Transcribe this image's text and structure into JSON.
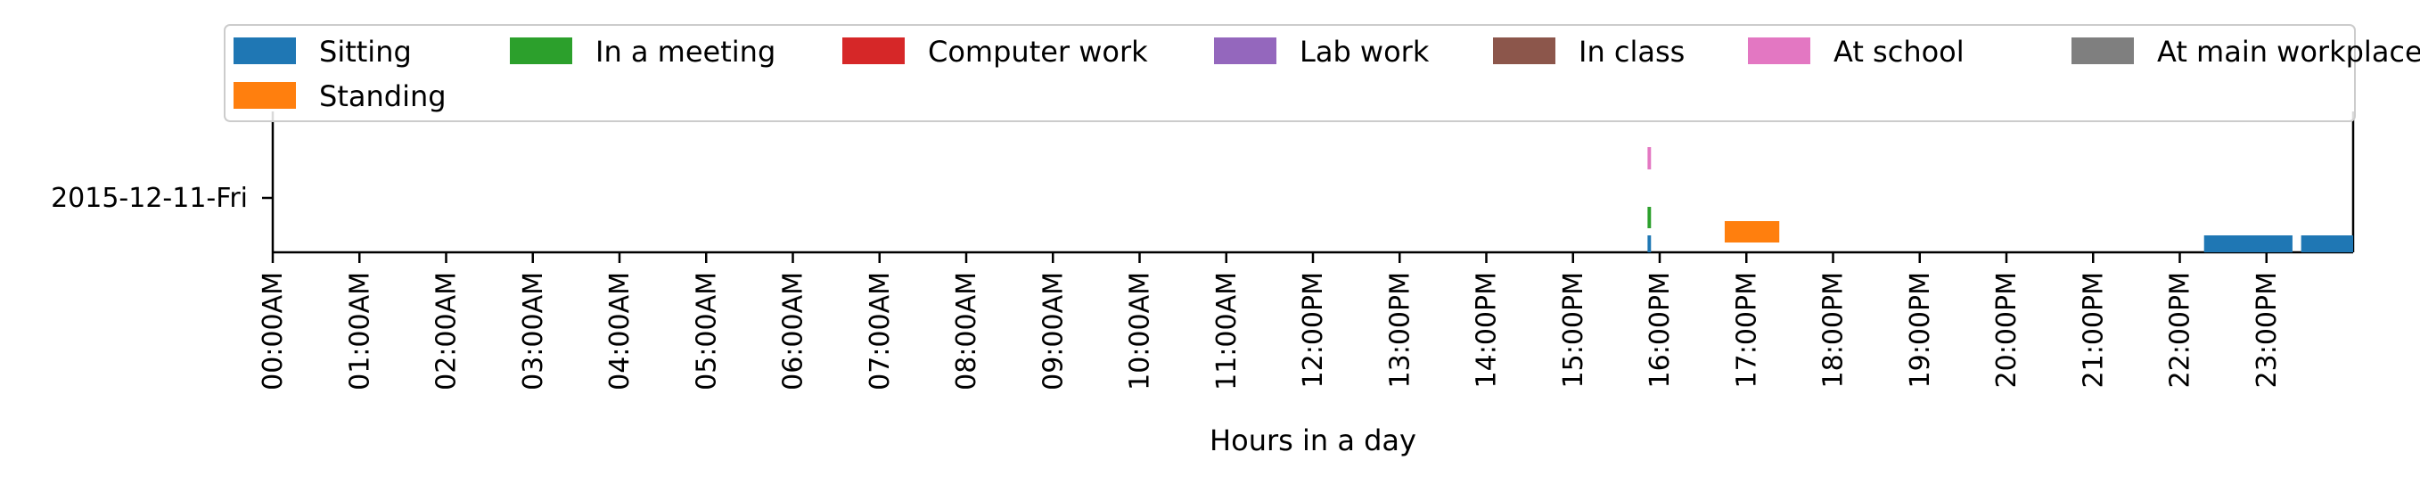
{
  "chart_data": {
    "type": "timeline",
    "title": "",
    "xlabel": "Hours in a day",
    "ylabel": "",
    "x_range_hours": [
      0,
      24
    ],
    "x_ticks": [
      "00:00AM",
      "01:00AM",
      "02:00AM",
      "03:00AM",
      "04:00AM",
      "05:00AM",
      "06:00AM",
      "07:00AM",
      "08:00AM",
      "09:00AM",
      "10:00AM",
      "11:00AM",
      "12:00PM",
      "13:00PM",
      "14:00PM",
      "15:00PM",
      "16:00PM",
      "17:00PM",
      "18:00PM",
      "19:00PM",
      "20:00PM",
      "21:00PM",
      "22:00PM",
      "23:00PM"
    ],
    "categories": [
      "2015-12-11-Fri"
    ],
    "legend_position": "top",
    "grid": false,
    "series": [
      {
        "name": "Sitting",
        "color": "#1f77b4",
        "intervals": [
          [
            15.86,
            15.9
          ],
          [
            22.28,
            23.3
          ],
          [
            23.4,
            24.0
          ]
        ]
      },
      {
        "name": "Standing",
        "color": "#ff7f0e",
        "intervals": [
          [
            16.75,
            17.38
          ]
        ]
      },
      {
        "name": "In a meeting",
        "color": "#2ca02c",
        "intervals": [
          [
            15.86,
            15.9
          ]
        ]
      },
      {
        "name": "Computer work",
        "color": "#d62728",
        "intervals": []
      },
      {
        "name": "Lab work",
        "color": "#9467bd",
        "intervals": []
      },
      {
        "name": "In class",
        "color": "#8c564b",
        "intervals": []
      },
      {
        "name": "At school",
        "color": "#e377c2",
        "intervals": [
          [
            15.86,
            15.9
          ]
        ]
      },
      {
        "name": "At main workplace",
        "color": "#7f7f7f",
        "intervals": []
      }
    ]
  }
}
